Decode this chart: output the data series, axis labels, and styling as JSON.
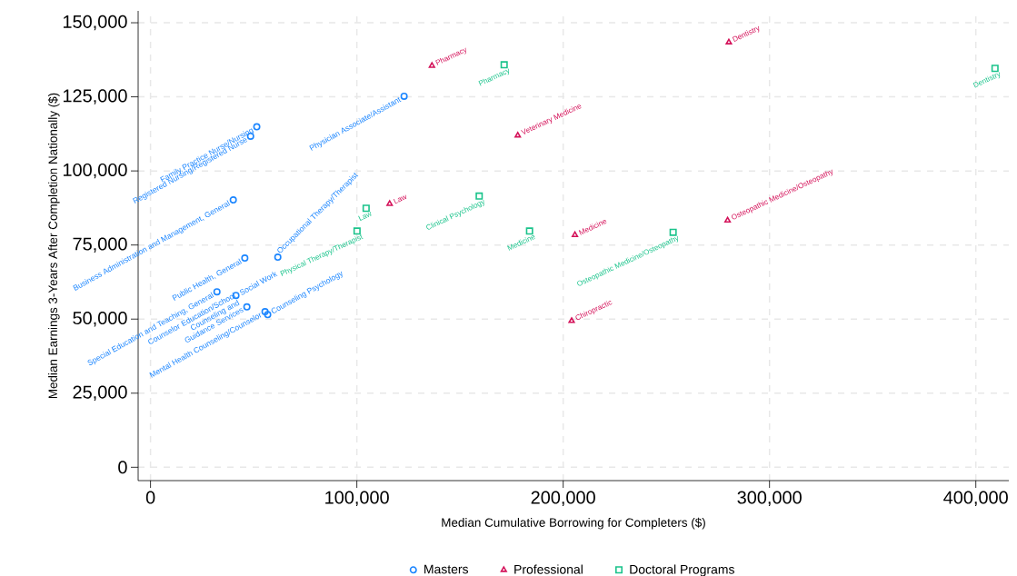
{
  "chart_data": {
    "type": "scatter",
    "xlabel": "Median Cumulative Borrowing for Completers ($)",
    "ylabel": "Median Earnings 3-Years After Completion Nationally ($)",
    "xlim": [
      -6000,
      416000
    ],
    "ylim": [
      -4500,
      154000
    ],
    "xticks": [
      0,
      {
        "value": 100000,
        "label": "100,000"
      },
      {
        "value": 200000,
        "label": "200,000"
      },
      {
        "value": 300000,
        "label": "300,000"
      },
      {
        "value": 400000,
        "label": "400,000"
      }
    ],
    "yticks": [
      0,
      {
        "value": 25000,
        "label": "25,000"
      },
      {
        "value": 50000,
        "label": "50,000"
      },
      {
        "value": 75000,
        "label": "75,000"
      },
      {
        "value": 100000,
        "label": "100,000"
      },
      {
        "value": 125000,
        "label": "125,000"
      },
      {
        "value": 150000,
        "label": "150,000"
      }
    ],
    "grid": true,
    "legend": "bottom",
    "series": [
      {
        "name": "Masters",
        "color": "#1a85ff",
        "marker": "circle",
        "x": [
          51500,
          48500,
          40100,
          45700,
          61700,
          32200,
          41400,
          46700,
          55500,
          56800,
          122900
        ],
        "values": [
          114900,
          111700,
          90200,
          70600,
          70900,
          59200,
          58000,
          54100,
          52500,
          51500,
          125200
        ],
        "value_labels": [
          "Family Practice Nurse/Nursing",
          "Registered Nursing/Registered Nurse",
          "Business Administration and Management, General",
          "Public Health, General",
          "Occupational Therapy/Therapist",
          "Special Education and Teaching, General",
          "Social Work",
          "Counselor Education/School Counseling and Guidance Services",
          "Mental Health Counseling/Counselor",
          "Counseling Psychology",
          "Physician Associate/Assistant"
        ]
      },
      {
        "name": "Professional",
        "color": "#d41159",
        "marker": "triangle",
        "x": [
          136400,
          178000,
          115900,
          205700,
          280300,
          279700,
          204100
        ],
        "values": [
          135500,
          112000,
          88900,
          78400,
          143400,
          83300,
          49400
        ],
        "value_labels": [
          "Pharmacy",
          "Veterinary Medicine",
          "Law",
          "Medicine",
          "Dentistry",
          "Osteopathic Medicine/Osteopathy",
          "Chiropractic"
        ]
      },
      {
        "name": "Doctoral Programs",
        "color": "#1ac38b",
        "marker": "square",
        "x": [
          171400,
          104500,
          100100,
          159300,
          183700,
          253300,
          409300
        ],
        "values": [
          135800,
          87400,
          79700,
          91500,
          79700,
          79300,
          134600
        ],
        "value_labels": [
          "Pharmacy",
          "Law",
          "Physical Therapy/Therapist",
          "Clinical Psychology",
          "Medicine",
          "Osteopathic Medicine/Osteopathy",
          "Dentistry"
        ]
      }
    ]
  }
}
